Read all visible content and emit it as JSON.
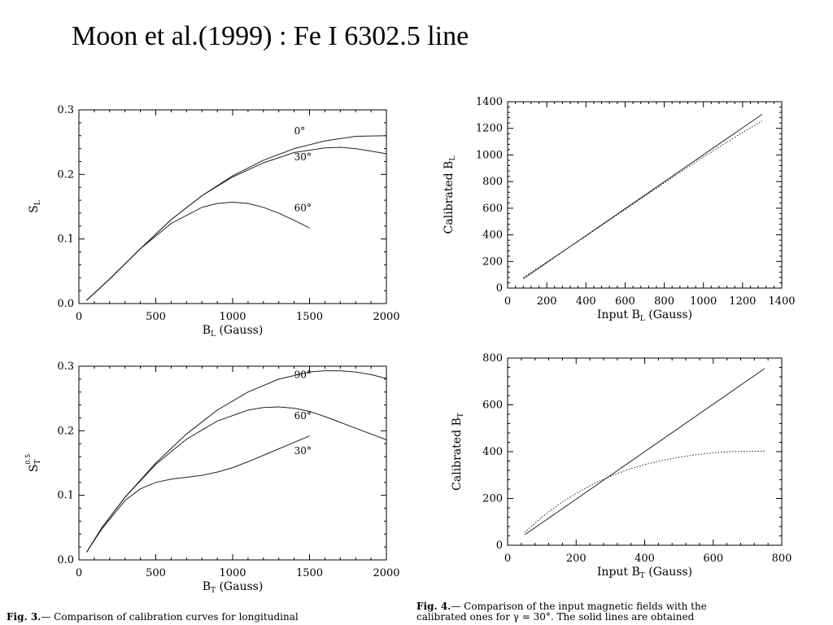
{
  "slide": {
    "title": "Moon et al.(1999) : Fe I 6302.5 line"
  },
  "chart_data": [
    {
      "type": "line",
      "id": "sl-vs-bl",
      "xlabel": "B",
      "xlabel_sub": "L",
      "xlabel_suffix": " (Gauss)",
      "ylabel": "S",
      "ylabel_sub": "L",
      "ylabel_sup": "",
      "xlim": [
        0,
        2000
      ],
      "ylim": [
        0,
        0.3
      ],
      "xticks": [
        0,
        500,
        1000,
        1500,
        2000
      ],
      "yticks": [
        0.0,
        0.1,
        0.2,
        0.3
      ],
      "ytick_labels": [
        "0.0",
        "0.1",
        "0.2",
        "0.3"
      ],
      "series": [
        {
          "name": "0°",
          "style": "solid",
          "x": [
            50,
            200,
            400,
            600,
            800,
            1000,
            1200,
            1400,
            1600,
            1800,
            2000
          ],
          "y": [
            0.005,
            0.038,
            0.085,
            0.13,
            0.167,
            0.198,
            0.222,
            0.24,
            0.252,
            0.259,
            0.26
          ]
        },
        {
          "name": "30°",
          "style": "solid",
          "x": [
            50,
            200,
            400,
            600,
            800,
            1000,
            1200,
            1400,
            1600,
            1700,
            1800,
            2000
          ],
          "y": [
            0.005,
            0.038,
            0.085,
            0.13,
            0.167,
            0.196,
            0.218,
            0.234,
            0.241,
            0.242,
            0.24,
            0.232
          ]
        },
        {
          "name": "60°",
          "style": "solid",
          "x": [
            50,
            200,
            400,
            600,
            800,
            900,
            1000,
            1100,
            1200,
            1300,
            1400,
            1500
          ],
          "y": [
            0.005,
            0.038,
            0.085,
            0.124,
            0.149,
            0.155,
            0.157,
            0.155,
            0.149,
            0.14,
            0.129,
            0.117
          ]
        }
      ],
      "annotations": [
        {
          "text": "0°",
          "x": 1400,
          "y": 0.262
        },
        {
          "text": "30°",
          "x": 1400,
          "y": 0.222
        },
        {
          "text": "60°",
          "x": 1400,
          "y": 0.143
        }
      ]
    },
    {
      "type": "line",
      "id": "calibrated-bl",
      "xlabel": "Input B",
      "xlabel_sub": "L",
      "xlabel_suffix": " (Gauss)",
      "ylabel": "Calibrated B",
      "ylabel_sub": "L",
      "ylabel_sup": "",
      "xlim": [
        0,
        1400
      ],
      "ylim": [
        0,
        1400
      ],
      "xticks": [
        0,
        200,
        400,
        600,
        800,
        1000,
        1200,
        1400
      ],
      "yticks": [
        0,
        200,
        400,
        600,
        800,
        1000,
        1200,
        1400
      ],
      "ytick_labels": [
        "0",
        "200",
        "400",
        "600",
        "800",
        "1000",
        "1200",
        "1400"
      ],
      "series": [
        {
          "name": "",
          "style": "solid",
          "x": [
            80,
            1300
          ],
          "y": [
            70,
            1305
          ]
        },
        {
          "name": "",
          "style": "dotted",
          "x": [
            80,
            400,
            800,
            1000,
            1200,
            1300
          ],
          "y": [
            80,
            390,
            790,
            985,
            1170,
            1255
          ]
        }
      ],
      "annotations": []
    },
    {
      "type": "line",
      "id": "st-vs-bt",
      "xlabel": "B",
      "xlabel_sub": "T",
      "xlabel_suffix": " (Gauss)",
      "ylabel": "S",
      "ylabel_sub": "T",
      "ylabel_sup": "0.5",
      "xlim": [
        0,
        2000
      ],
      "ylim": [
        0,
        0.3
      ],
      "xticks": [
        0,
        500,
        1000,
        1500,
        2000
      ],
      "yticks": [
        0.0,
        0.1,
        0.2,
        0.3
      ],
      "ytick_labels": [
        "0.0",
        "0.1",
        "0.2",
        "0.3"
      ],
      "series": [
        {
          "name": "90°",
          "style": "solid",
          "x": [
            50,
            150,
            300,
            500,
            700,
            900,
            1100,
            1300,
            1500,
            1600,
            1700,
            1800,
            1900,
            2000
          ],
          "y": [
            0.012,
            0.05,
            0.097,
            0.15,
            0.195,
            0.232,
            0.26,
            0.28,
            0.291,
            0.293,
            0.293,
            0.291,
            0.287,
            0.281
          ]
        },
        {
          "name": "60°",
          "style": "solid",
          "x": [
            50,
            150,
            300,
            500,
            700,
            900,
            1100,
            1200,
            1300,
            1400,
            1500,
            1600,
            1700,
            1800,
            1900,
            2000
          ],
          "y": [
            0.012,
            0.05,
            0.097,
            0.148,
            0.187,
            0.215,
            0.232,
            0.236,
            0.237,
            0.235,
            0.23,
            0.222,
            0.213,
            0.204,
            0.195,
            0.186
          ]
        },
        {
          "name": "30°",
          "style": "solid",
          "x": [
            50,
            150,
            300,
            400,
            500,
            600,
            700,
            800,
            900,
            1000,
            1100,
            1200,
            1300,
            1400,
            1500
          ],
          "y": [
            0.012,
            0.048,
            0.092,
            0.11,
            0.12,
            0.125,
            0.128,
            0.131,
            0.136,
            0.143,
            0.152,
            0.162,
            0.172,
            0.182,
            0.192
          ]
        }
      ],
      "annotations": [
        {
          "text": "90°",
          "x": 1400,
          "y": 0.282
        },
        {
          "text": "60°",
          "x": 1400,
          "y": 0.218
        },
        {
          "text": "30°",
          "x": 1400,
          "y": 0.164
        }
      ]
    },
    {
      "type": "line",
      "id": "calibrated-bt",
      "xlabel": "Input B",
      "xlabel_sub": "T",
      "xlabel_suffix": " (Gauss)",
      "ylabel": "Calibrated B",
      "ylabel_sub": "T",
      "ylabel_sup": "",
      "xlim": [
        0,
        800
      ],
      "ylim": [
        0,
        800
      ],
      "xticks": [
        0,
        200,
        400,
        600,
        800
      ],
      "yticks": [
        0,
        200,
        400,
        600,
        800
      ],
      "ytick_labels": [
        "0",
        "200",
        "400",
        "600",
        "800"
      ],
      "series": [
        {
          "name": "",
          "style": "solid",
          "x": [
            50,
            750
          ],
          "y": [
            45,
            755
          ]
        },
        {
          "name": "",
          "style": "dotted",
          "x": [
            50,
            100,
            150,
            200,
            250,
            300,
            350,
            400,
            450,
            500,
            550,
            600,
            650,
            700,
            750
          ],
          "y": [
            55,
            120,
            175,
            222,
            262,
            295,
            323,
            345,
            362,
            376,
            387,
            395,
            400,
            402,
            402
          ]
        }
      ],
      "annotations": []
    }
  ],
  "captions": {
    "fig3": {
      "label": "Fig. 3.",
      "text": "— Comparison of calibration curves for longitudinal"
    },
    "fig4": {
      "label": "Fig. 4.",
      "line1": "— Comparison of the input magnetic fields with the",
      "line2": "calibrated ones for γ = 30°.  The solid lines are obtained"
    }
  }
}
